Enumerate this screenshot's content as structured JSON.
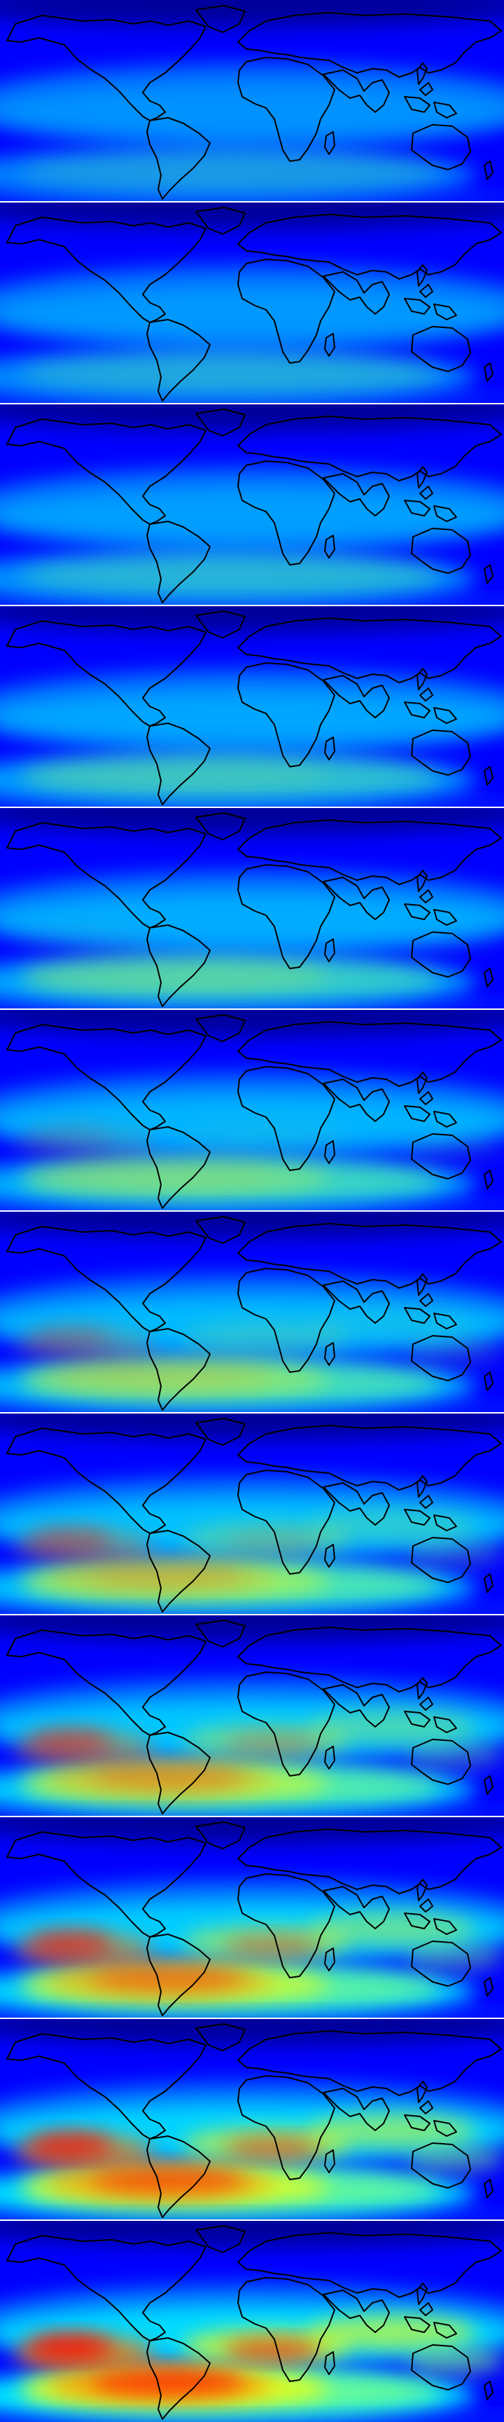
{
  "figure": {
    "type": "map-panel-stack",
    "projection": "equirectangular",
    "coastlines": true,
    "colormap": [
      "#00008f",
      "#0000ff",
      "#0080ff",
      "#00ffff",
      "#80ff80",
      "#ffff00",
      "#ff8000",
      "#ff0000",
      "#800000"
    ],
    "panel_count": 12
  }
}
